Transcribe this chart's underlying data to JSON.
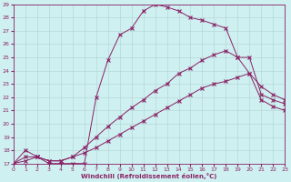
{
  "xlabel": "Windchill (Refroidissement éolien,°C)",
  "bg_color": "#cff0f0",
  "line_color": "#882266",
  "xlim": [
    0,
    23
  ],
  "ylim": [
    17,
    29
  ],
  "xticks": [
    0,
    1,
    2,
    3,
    4,
    5,
    6,
    7,
    8,
    9,
    10,
    11,
    12,
    13,
    14,
    15,
    16,
    17,
    18,
    19,
    20,
    21,
    22,
    23
  ],
  "yticks": [
    17,
    18,
    19,
    20,
    21,
    22,
    23,
    24,
    25,
    26,
    27,
    28,
    29
  ],
  "line1_x": [
    0,
    1,
    2,
    3,
    4,
    5,
    6,
    7,
    8,
    9,
    10,
    11,
    12,
    13,
    14,
    15,
    16,
    17,
    18,
    19,
    20,
    21,
    22,
    23
  ],
  "line1_y": [
    17.0,
    18.0,
    17.5,
    17.0,
    17.0,
    17.0,
    17.0,
    22.0,
    24.8,
    26.7,
    27.2,
    28.5,
    29.0,
    28.8,
    28.5,
    28.0,
    27.8,
    27.5,
    27.2,
    25.0,
    25.0,
    22.2,
    21.8,
    21.5
  ],
  "line2_x": [
    0,
    1,
    2,
    3,
    4,
    5,
    6,
    7,
    8,
    9,
    10,
    11,
    12,
    13,
    14,
    15,
    16,
    17,
    18,
    19,
    20,
    21,
    22,
    23
  ],
  "line2_y": [
    17.0,
    17.5,
    17.5,
    17.2,
    17.2,
    17.5,
    18.2,
    19.0,
    19.8,
    20.5,
    21.2,
    21.8,
    22.5,
    23.0,
    23.8,
    24.2,
    24.8,
    25.2,
    25.5,
    25.0,
    23.8,
    22.8,
    22.2,
    21.8
  ],
  "line3_x": [
    0,
    1,
    2,
    3,
    4,
    5,
    6,
    7,
    8,
    9,
    10,
    11,
    12,
    13,
    14,
    15,
    16,
    17,
    18,
    19,
    20,
    21,
    22,
    23
  ],
  "line3_y": [
    17.0,
    17.2,
    17.5,
    17.2,
    17.2,
    17.5,
    17.8,
    18.2,
    18.7,
    19.2,
    19.7,
    20.2,
    20.7,
    21.2,
    21.7,
    22.2,
    22.7,
    23.0,
    23.2,
    23.5,
    23.8,
    21.8,
    21.3,
    21.0
  ]
}
